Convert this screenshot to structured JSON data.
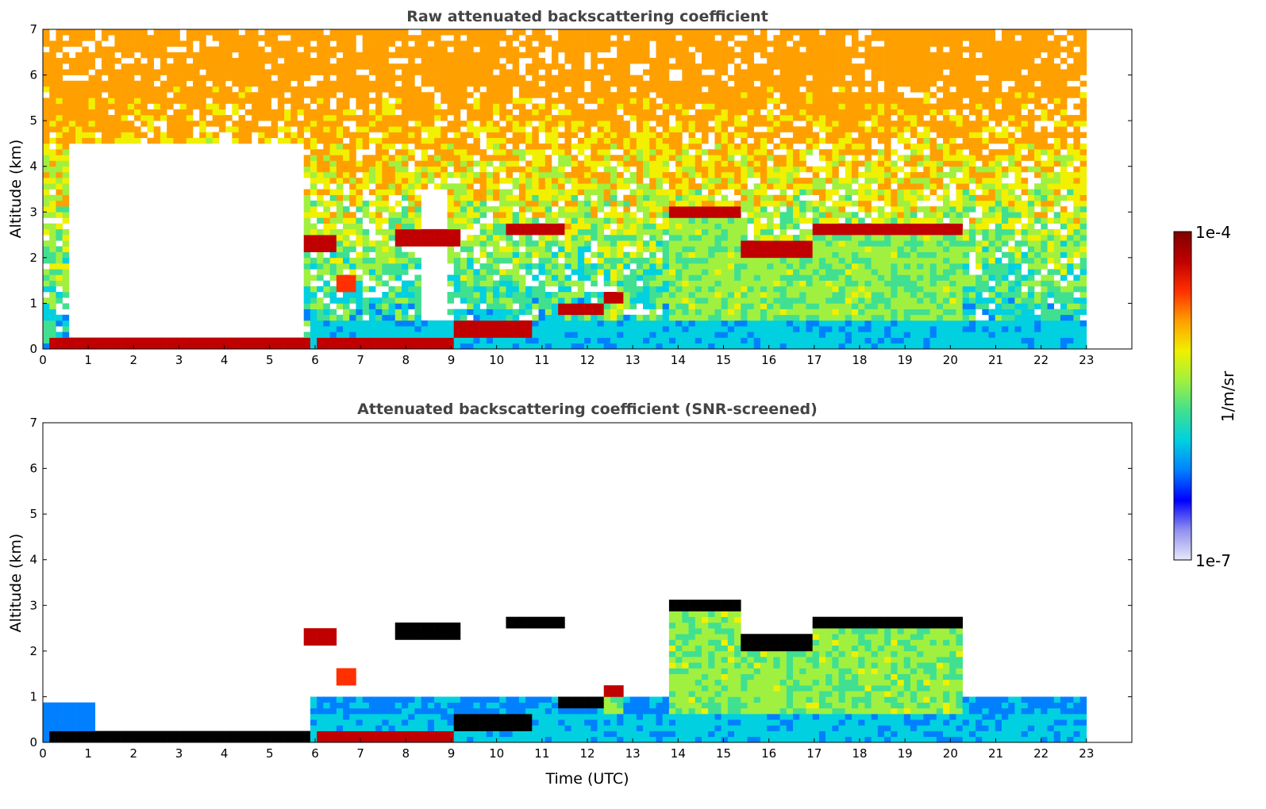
{
  "chart_data": [
    {
      "type": "heatmap",
      "title": "Raw attenuated backscattering coefficient",
      "xlabel": "",
      "ylabel": "Altitude (km)",
      "xlim": [
        0,
        24
      ],
      "ylim": [
        0,
        7
      ],
      "xticks": [
        "0",
        "1",
        "2",
        "3",
        "4",
        "5",
        "6",
        "7",
        "8",
        "9",
        "10",
        "11",
        "12",
        "13",
        "14",
        "15",
        "16",
        "17",
        "18",
        "19",
        "20",
        "21",
        "22",
        "23"
      ],
      "yticks": [
        "0",
        "1",
        "2",
        "3",
        "4",
        "5",
        "6",
        "7"
      ],
      "data_end_time": 23,
      "screened": false,
      "features": [
        {
          "kind": "cloud_layer",
          "t0": 5.8,
          "t1": 6.4,
          "alt": 2.3,
          "value": 0.9
        },
        {
          "kind": "cloud_layer",
          "t0": 6.5,
          "t1": 6.95,
          "alt": 1.45,
          "value": 0.85
        },
        {
          "kind": "cloud_layer",
          "t0": 7.7,
          "t1": 9.2,
          "alt": 2.45,
          "value": 0.95
        },
        {
          "kind": "cloud_layer",
          "t0": 10.2,
          "t1": 11.5,
          "alt": 2.6,
          "value": 0.95
        },
        {
          "kind": "cloud_layer",
          "t0": 11.4,
          "t1": 12.3,
          "alt": 0.85,
          "value": 0.95
        },
        {
          "kind": "cloud_layer",
          "t0": 12.3,
          "t1": 12.8,
          "alt": 1.15,
          "value": 0.9
        },
        {
          "kind": "cloud_layer",
          "t0": 9.0,
          "t1": 10.8,
          "alt": 0.45,
          "value": 0.95
        },
        {
          "kind": "cloud_layer",
          "t0": 13.8,
          "t1": 15.4,
          "alt": 3.0,
          "value": 0.95
        },
        {
          "kind": "cloud_layer",
          "t0": 15.4,
          "t1": 16.9,
          "alt": 2.2,
          "value": 0.95
        },
        {
          "kind": "cloud_layer",
          "t0": 16.9,
          "t1": 20.2,
          "alt": 2.65,
          "value": 0.95
        },
        {
          "kind": "cloud_layer",
          "t0": 0.1,
          "t1": 5.85,
          "alt": 0.12,
          "value": 0.95
        },
        {
          "kind": "cloud_layer",
          "t0": 6.0,
          "t1": 9.0,
          "alt": 0.05,
          "value": 0.9
        }
      ]
    },
    {
      "type": "heatmap",
      "title": "Attenuated backscattering coefficient (SNR-screened)",
      "xlabel": "Time (UTC)",
      "ylabel": "Altitude (km)",
      "xlim": [
        0,
        24
      ],
      "ylim": [
        0,
        7
      ],
      "xticks": [
        "0",
        "1",
        "2",
        "3",
        "4",
        "5",
        "6",
        "7",
        "8",
        "9",
        "10",
        "11",
        "12",
        "13",
        "14",
        "15",
        "16",
        "17",
        "18",
        "19",
        "20",
        "21",
        "22",
        "23"
      ],
      "yticks": [
        "0",
        "1",
        "2",
        "3",
        "4",
        "5",
        "6",
        "7"
      ],
      "data_end_time": 23,
      "screened": true
    }
  ],
  "colorbar": {
    "label": "1/m/sr",
    "max_label": "1e-4",
    "min_label": "1e-7",
    "scale": "log",
    "colors": [
      "#e8e8f8",
      "#9090f0",
      "#0000ff",
      "#0080ff",
      "#00d0e0",
      "#40e090",
      "#a0f040",
      "#f0f000",
      "#ffa000",
      "#ff3000",
      "#c00000",
      "#800000"
    ]
  }
}
